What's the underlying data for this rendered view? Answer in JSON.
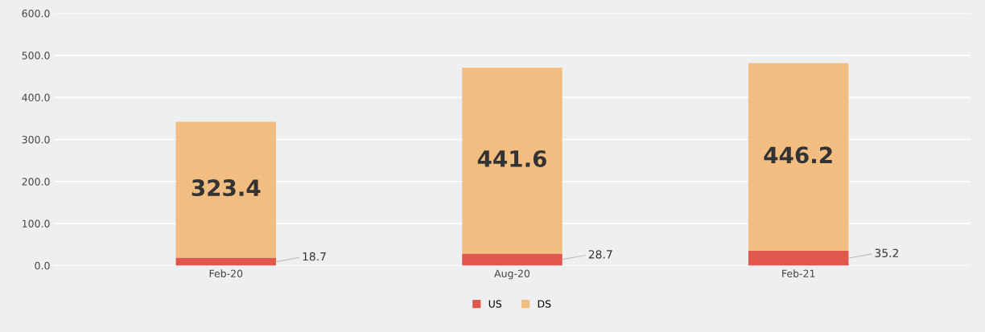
{
  "chart_data": {
    "type": "bar",
    "stacked": true,
    "categories": [
      "Feb-20",
      "Aug-20",
      "Feb-21"
    ],
    "series": [
      {
        "name": "US",
        "color": "#e0574c",
        "values": [
          18.7,
          28.7,
          35.2
        ]
      },
      {
        "name": "DS",
        "color": "#f2bd80",
        "values": [
          323.4,
          441.6,
          446.2
        ]
      }
    ],
    "ylim": [
      0,
      600
    ],
    "yticks": [
      {
        "value": 0,
        "label": "0.0"
      },
      {
        "value": 100,
        "label": "100.0"
      },
      {
        "value": 200,
        "label": "200.0"
      },
      {
        "value": 300,
        "label": "300.0"
      },
      {
        "value": 400,
        "label": "400.0"
      },
      {
        "value": 500,
        "label": "500.0"
      },
      {
        "value": 600,
        "label": "600.0"
      }
    ],
    "grid": "y",
    "legend": "bottom",
    "data_labels": true
  }
}
